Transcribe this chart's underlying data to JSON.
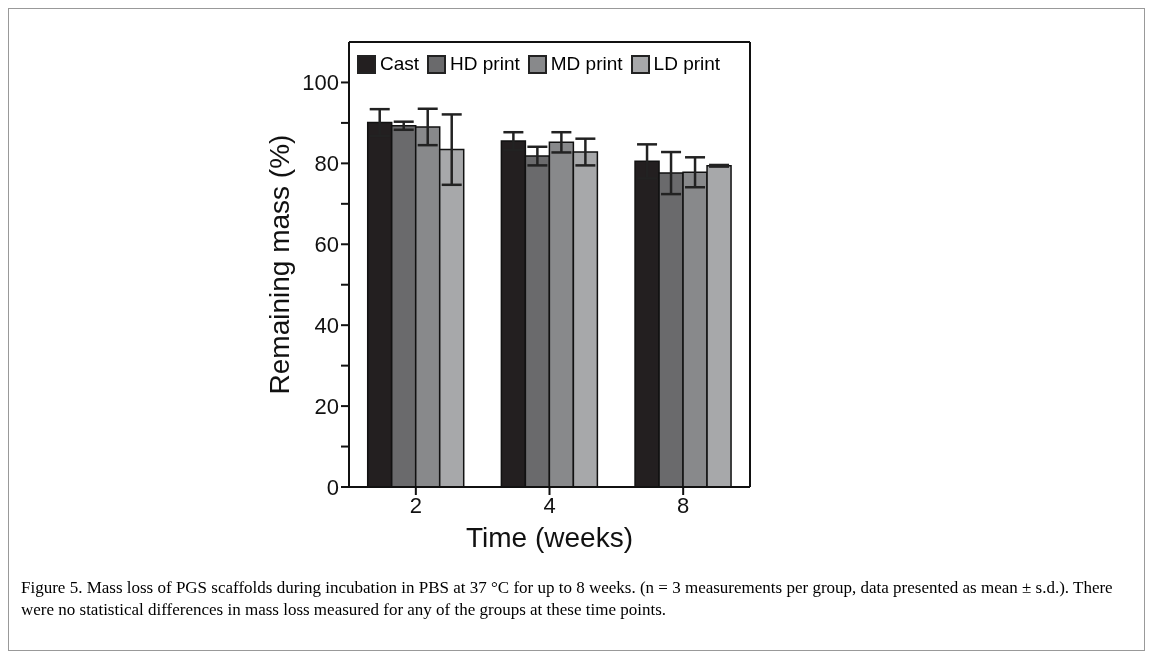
{
  "chart_data": {
    "type": "bar",
    "xlabel": "Time (weeks)",
    "ylabel": "Remaining mass (%)",
    "categories": [
      "2",
      "4",
      "8"
    ],
    "series": [
      {
        "name": "Cast",
        "color": "#231f20",
        "values": [
          90.1,
          85.5,
          80.5
        ],
        "errors": [
          3.3,
          2.2,
          4.2
        ]
      },
      {
        "name": "HD print",
        "color": "#6a6a6c",
        "values": [
          89.3,
          81.8,
          77.6
        ],
        "errors": [
          1.0,
          2.3,
          5.2
        ]
      },
      {
        "name": "MD print",
        "color": "#88898b",
        "values": [
          89,
          85.2,
          77.8
        ],
        "errors": [
          4.5,
          2.5,
          3.7
        ]
      },
      {
        "name": "LD print",
        "color": "#a7a8aa",
        "values": [
          83.4,
          82.8,
          79.4
        ],
        "errors": [
          8.7,
          3.3,
          0.2
        ]
      }
    ],
    "ylim": [
      0,
      110
    ],
    "yticks": [
      0,
      {
        "value": 10,
        "label": null
      },
      20,
      {
        "value": 30,
        "label": null
      },
      40,
      {
        "value": 50,
        "label": null
      },
      60,
      {
        "value": 70,
        "label": null
      },
      80,
      {
        "value": 90,
        "label": null
      },
      100
    ],
    "legend": "top left",
    "grid": false,
    "annotations": [
      "Figure 5. Mass loss of PGS scaffolds during incubation in PBS at 37 °C for up to 8 weeks. (n = 3 measurements per group, data presented as mean ± s.d.). There were no statistical differences in mass loss measured for any of the groups at these time points."
    ]
  }
}
